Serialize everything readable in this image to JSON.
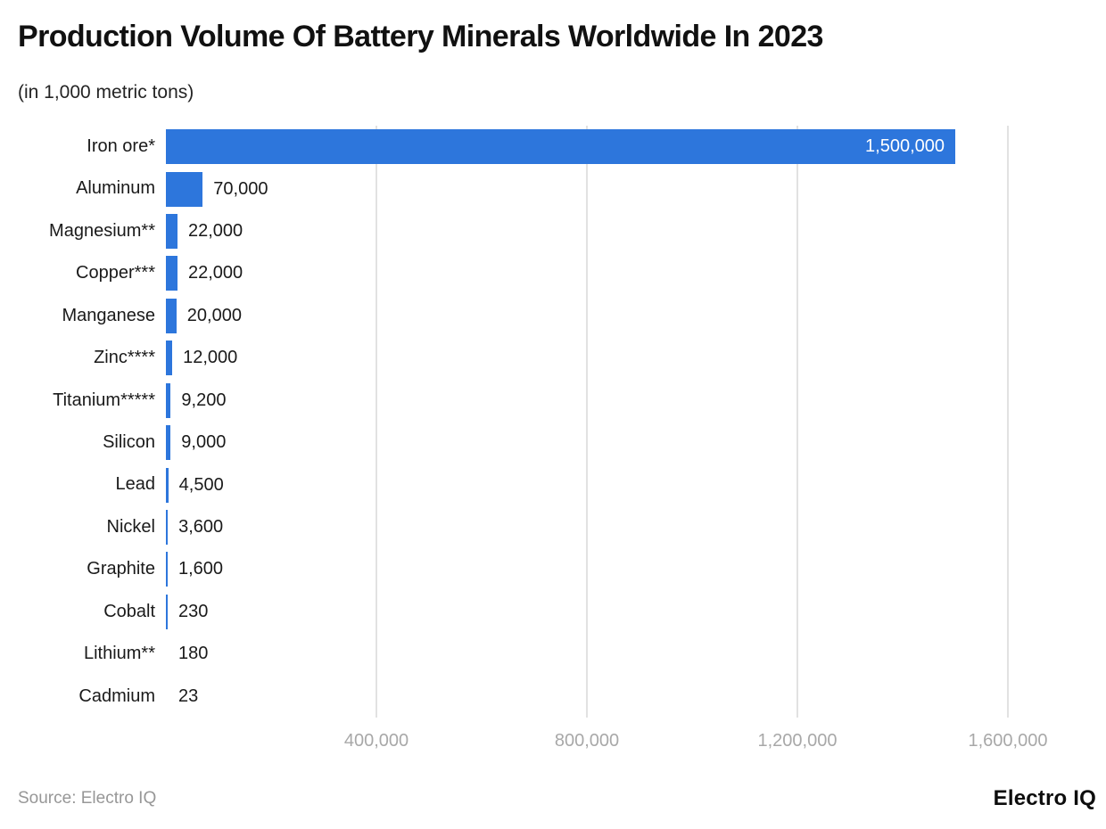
{
  "header": {
    "title": "Production Volume Of Battery Minerals Worldwide In 2023",
    "subtitle": "(in 1,000 metric tons)"
  },
  "footer": {
    "source": "Source: Electro IQ",
    "logo": "Electro IQ"
  },
  "chart_data": {
    "type": "bar",
    "orientation": "horizontal",
    "title": "Production Volume Of Battery Minerals Worldwide In 2023",
    "subtitle": "(in 1,000 metric tons)",
    "categories": [
      "Iron ore*",
      "Aluminum",
      "Magnesium**",
      "Copper***",
      "Manganese",
      "Zinc****",
      "Titanium*****",
      "Silicon",
      "Lead",
      "Nickel",
      "Graphite",
      "Cobalt",
      "Lithium**",
      "Cadmium"
    ],
    "values": [
      1500000,
      70000,
      22000,
      22000,
      20000,
      12000,
      9200,
      9000,
      4500,
      3600,
      1600,
      230,
      180,
      23
    ],
    "value_labels": [
      "1,500,000",
      "70,000",
      "22,000",
      "22,000",
      "20,000",
      "12,000",
      "9,200",
      "9,000",
      "4,500",
      "3,600",
      "1,600",
      "230",
      "180",
      "23"
    ],
    "x_ticks": [
      {
        "value": 400000,
        "label": "400,000"
      },
      {
        "value": 800000,
        "label": "800,000"
      },
      {
        "value": 1200000,
        "label": "1,200,000"
      },
      {
        "value": 1600000,
        "label": "1,600,000"
      }
    ],
    "xlim": [
      0,
      1700000
    ],
    "xlabel": "",
    "ylabel": "",
    "grid": true,
    "legend_position": "none",
    "colors": {
      "bar": "#2d76dc",
      "grid": "#e2e2e2",
      "tick_label": "#a8a8a8",
      "category_label": "#1a1a1a",
      "value_label": "#1a1a1a",
      "value_label_inside": "#ffffff",
      "background": "#ffffff"
    }
  }
}
